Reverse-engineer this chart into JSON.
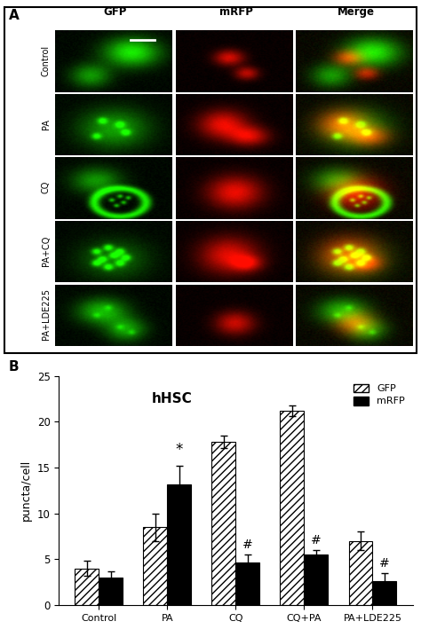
{
  "panel_A_label": "A",
  "panel_B_label": "B",
  "title": "hHSC",
  "ylabel": "puncta/cell",
  "ylim": [
    0,
    25
  ],
  "yticks": [
    0,
    5,
    10,
    15,
    20,
    25
  ],
  "categories": [
    "Control",
    "PA",
    "CQ",
    "CQ+PA",
    "PA+LDE225"
  ],
  "GFP_values": [
    4.0,
    8.5,
    17.8,
    21.2,
    7.0
  ],
  "mRFP_values": [
    3.0,
    13.2,
    4.7,
    5.5,
    2.6
  ],
  "GFP_errors": [
    0.8,
    1.5,
    0.7,
    0.6,
    1.0
  ],
  "mRFP_errors": [
    0.7,
    2.0,
    0.8,
    0.5,
    0.9
  ],
  "legend_GFP": "GFP",
  "legend_mRFP": "mRFP",
  "bar_width": 0.35,
  "figure_bg": "#ffffff",
  "col_labels": [
    "GFP",
    "mRFP",
    "Merge"
  ],
  "row_labels": [
    "Control",
    "PA",
    "CQ",
    "PA+CQ",
    "PA+LDE225"
  ],
  "font_size": 9,
  "title_font_size": 11,
  "scale_bar_color": "#ffffff"
}
